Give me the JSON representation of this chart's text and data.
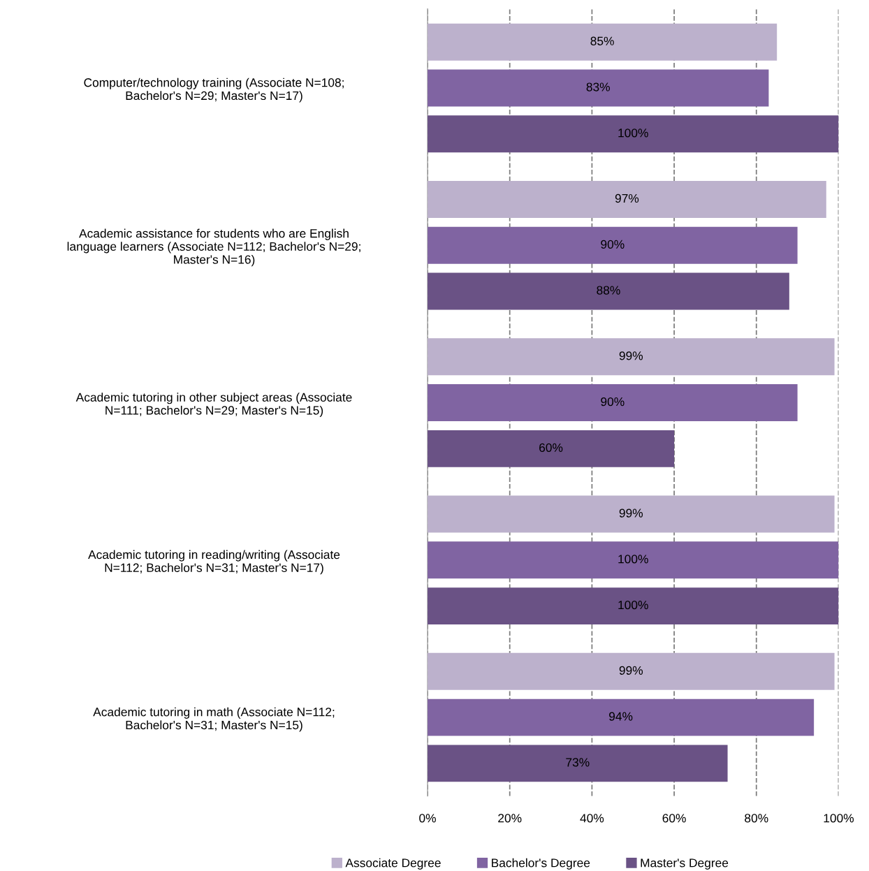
{
  "chart_data": {
    "type": "bar",
    "orientation": "horizontal",
    "categories": [
      "Computer/technology training (Associate N=108;\nBachelor's N=29; Master's N=17)",
      "Academic assistance for students who are English\nlanguage learners (Associate N=112; Bachelor's N=29;\nMaster's N=16)",
      "Academic tutoring in other subject areas (Associate\nN=111; Bachelor's N=29; Master's N=15)",
      "Academic tutoring in reading/writing (Associate\nN=112; Bachelor's N=31; Master's N=17)",
      "Academic tutoring in math (Associate N=112;\nBachelor's N=31; Master's N=15)"
    ],
    "series": [
      {
        "name": "Associate Degree",
        "color": "#bcb1cc",
        "values": [
          85,
          97,
          99,
          99,
          99
        ],
        "value_labels": [
          "85%",
          "97%",
          "99%",
          "99%",
          "99%"
        ]
      },
      {
        "name": "Bachelor's Degree",
        "color": "#8064a2",
        "values": [
          83,
          90,
          90,
          100,
          94
        ],
        "value_labels": [
          "83%",
          "90%",
          "90%",
          "100%",
          "94%"
        ]
      },
      {
        "name": "Master's Degree",
        "color": "#6a5285",
        "values": [
          100,
          88,
          60,
          100,
          73
        ],
        "value_labels": [
          "100%",
          "88%",
          "60%",
          "100%",
          "73%"
        ]
      }
    ],
    "xlim": [
      0,
      100
    ],
    "xticks": [
      {
        "value": 0,
        "label": "0%"
      },
      {
        "value": 20,
        "label": "20%"
      },
      {
        "value": 40,
        "label": "40%"
      },
      {
        "value": 60,
        "label": "60%"
      },
      {
        "value": 80,
        "label": "80%"
      },
      {
        "value": 100,
        "label": "100%"
      }
    ],
    "grid": "x",
    "line_style": "dashed",
    "legend": "bottom"
  }
}
